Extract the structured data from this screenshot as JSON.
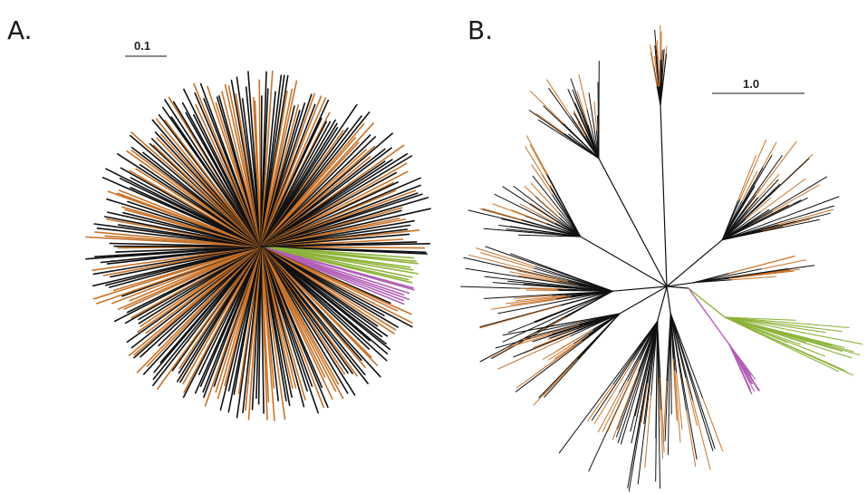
{
  "panels": [
    {
      "label": "A.",
      "scale_label": "0.1",
      "layout": "radial"
    },
    {
      "label": "B.",
      "scale_label": "1.0",
      "layout": "unrooted"
    }
  ],
  "colors": {
    "orange": "#c8732b",
    "black": "#111111",
    "green": "#8db33a",
    "purple": "#b25fb5"
  }
}
